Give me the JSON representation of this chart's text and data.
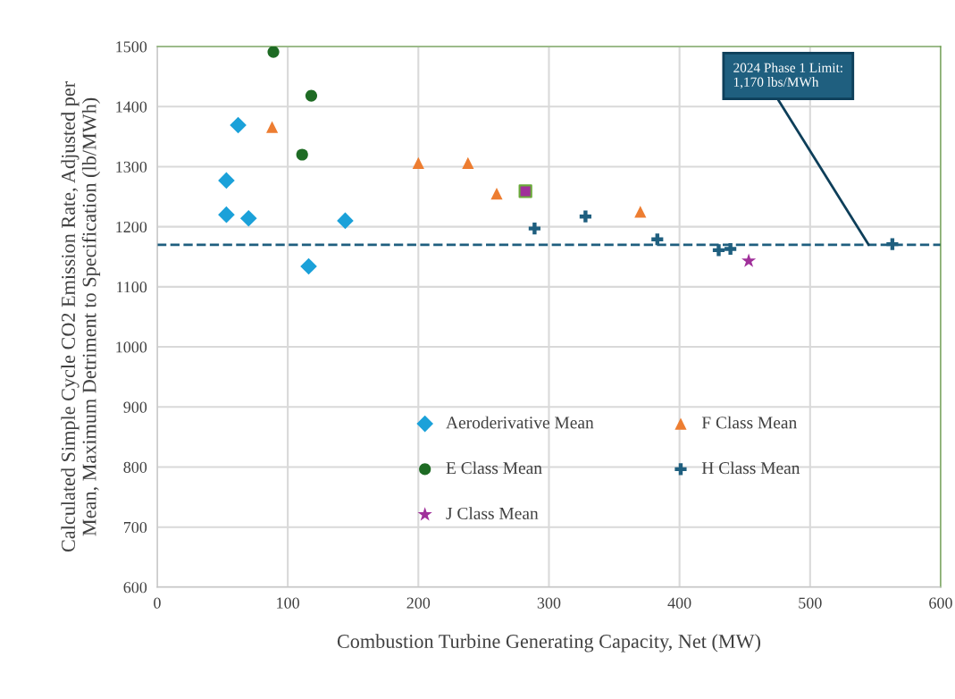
{
  "chart_data": {
    "type": "scatter",
    "xlabel": "Combustion Turbine Generating Capacity, Net (MW)",
    "ylabel": "Calculated Simple Cycle CO2 Emission Rate, Adjusted per\nMean, Maximum Detriment to Specification (lb/MWh)",
    "xlim": [
      0,
      600
    ],
    "xticks": [
      0,
      100,
      200,
      300,
      400,
      500,
      600
    ],
    "ylim": [
      600,
      1500
    ],
    "yticks": [
      600,
      700,
      800,
      900,
      1000,
      1100,
      1200,
      1300,
      1400,
      1500
    ],
    "grid": true,
    "legend": "bottom",
    "series": [
      {
        "name": "Aeroderivative Mean",
        "color": "#1ba1d9",
        "marker": "diamond",
        "x": [
          62,
          53,
          53,
          70,
          144,
          116
        ],
        "values": [
          1369,
          1277,
          1220,
          1214,
          1210,
          1134
        ]
      },
      {
        "name": "F Class Mean",
        "color": "#ed7d31",
        "marker": "triangle",
        "x": [
          88,
          200,
          238,
          260,
          370
        ],
        "values": [
          1366,
          1306,
          1306,
          1255,
          1225
        ]
      },
      {
        "name": "E Class Mean",
        "color": "#1e6b24",
        "marker": "circle",
        "x": [
          89,
          118,
          111
        ],
        "values": [
          1491,
          1418,
          1320
        ]
      },
      {
        "name": "H Class Mean",
        "color": "#1f5f7f",
        "marker": "cross",
        "x": [
          289,
          328,
          383,
          430,
          439,
          563
        ],
        "values": [
          1197,
          1217,
          1179,
          1161,
          1163,
          1171
        ]
      },
      {
        "name": "J Class Mean",
        "color": "#a0309a",
        "marker": "star",
        "x": [
          453
        ],
        "values": [
          1143
        ]
      },
      {
        "color": "#a0309a",
        "marker": "square",
        "x": [
          282
        ],
        "values": [
          1259
        ]
      }
    ],
    "ref_lines": [
      {
        "axis": "y",
        "value": 1170,
        "label": "2024 Phase 1 Limit:\n1,170 lbs/MWh",
        "color": "#1f5f7f",
        "line_style": "dashed"
      }
    ]
  }
}
